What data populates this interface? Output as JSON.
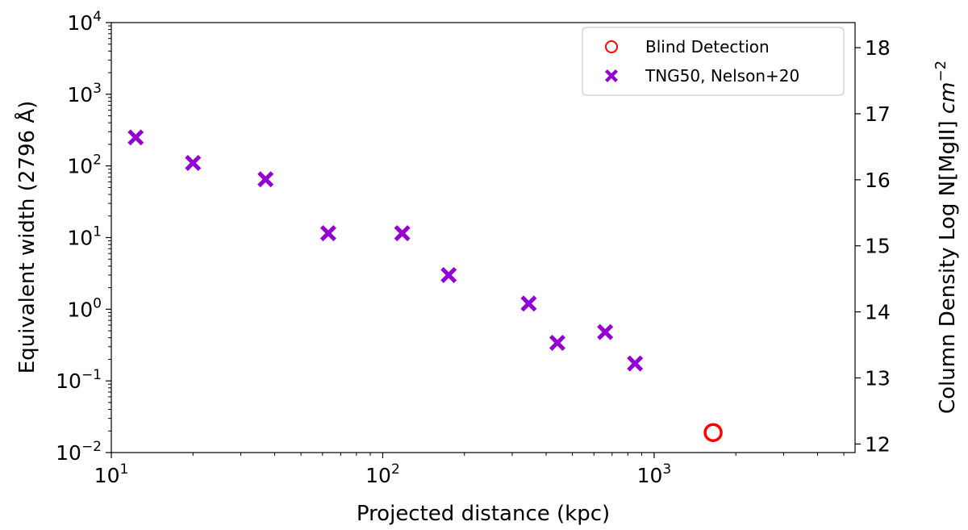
{
  "chart_data": {
    "type": "scatter",
    "xlabel": "Projected distance (kpc)",
    "ylabel": "Equivalent width (2796 Å)",
    "y2label_main": "Column Density Log N[MgII] ",
    "y2label_unit": "cm",
    "y2label_exp": "−2",
    "xscale": "log",
    "yscale": "log",
    "xlim": [
      10,
      5500
    ],
    "ylim": [
      0.01,
      10000
    ],
    "y2lim": [
      11.87,
      18.38
    ],
    "x_ticks": [
      {
        "value": 10,
        "base": "10",
        "exp": "1"
      },
      {
        "value": 100,
        "base": "10",
        "exp": "2"
      },
      {
        "value": 1000,
        "base": "10",
        "exp": "3"
      }
    ],
    "y_ticks": [
      {
        "value": 0.01,
        "base": "10",
        "exp": "−2"
      },
      {
        "value": 0.1,
        "base": "10",
        "exp": "−1"
      },
      {
        "value": 1,
        "base": "10",
        "exp": "0"
      },
      {
        "value": 10,
        "base": "10",
        "exp": "1"
      },
      {
        "value": 100,
        "base": "10",
        "exp": "2"
      },
      {
        "value": 1000,
        "base": "10",
        "exp": "3"
      },
      {
        "value": 10000,
        "base": "10",
        "exp": "4"
      }
    ],
    "y2_ticks": [
      "12",
      "13",
      "14",
      "15",
      "16",
      "17",
      "18"
    ],
    "grid": false,
    "legend_position": "upper right",
    "series": [
      {
        "name": "Blind Detection",
        "marker": "circle-open",
        "color": "#ff0000",
        "points": [
          {
            "x": 1650,
            "y": 0.019
          }
        ]
      },
      {
        "name": "TNG50, Nelson+20",
        "marker": "X",
        "color": "#9400d3",
        "points": [
          {
            "x": 12.3,
            "y": 250
          },
          {
            "x": 20,
            "y": 110
          },
          {
            "x": 37,
            "y": 65
          },
          {
            "x": 63,
            "y": 11.5
          },
          {
            "x": 118,
            "y": 11.5
          },
          {
            "x": 175,
            "y": 3.0
          },
          {
            "x": 345,
            "y": 1.2
          },
          {
            "x": 440,
            "y": 0.34
          },
          {
            "x": 660,
            "y": 0.48
          },
          {
            "x": 850,
            "y": 0.175
          }
        ]
      }
    ]
  }
}
